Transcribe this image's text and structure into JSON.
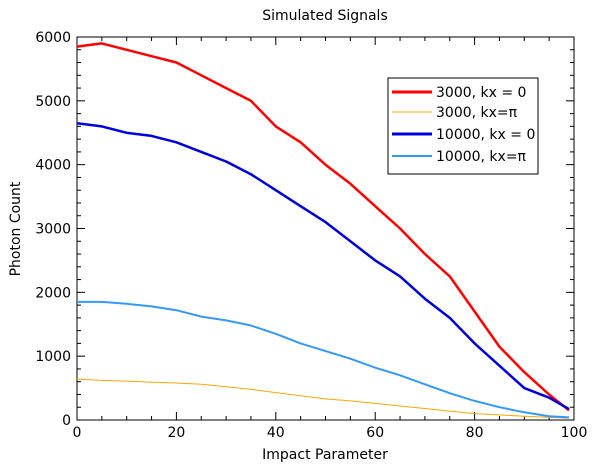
{
  "chart_data": {
    "type": "line",
    "title": "Simulated Signals",
    "xlabel": "Impact Parameter",
    "ylabel": "Photon Count",
    "xlim": [
      0,
      100
    ],
    "ylim": [
      0,
      6000
    ],
    "xticks": [
      0,
      20,
      40,
      60,
      80,
      100
    ],
    "yticks": [
      0,
      1000,
      2000,
      3000,
      4000,
      5000,
      6000
    ],
    "xticklabels": [
      "0",
      "20",
      "40",
      "60",
      "80",
      "100"
    ],
    "yticklabels": [
      "0",
      "1000",
      "2000",
      "3000",
      "4000",
      "5000",
      "6000"
    ],
    "grid": false,
    "legend_position": "top-right",
    "series": [
      {
        "name": "3000, kx = 0",
        "color": "#ff0000",
        "x": [
          0,
          5,
          10,
          15,
          20,
          25,
          30,
          35,
          40,
          45,
          50,
          55,
          60,
          65,
          70,
          75,
          80,
          85,
          90,
          95,
          99
        ],
        "y": [
          5850,
          5900,
          5800,
          5700,
          5600,
          5400,
          5200,
          5000,
          4600,
          4350,
          4000,
          3700,
          3350,
          3000,
          2600,
          2250,
          1700,
          1150,
          750,
          400,
          150
        ]
      },
      {
        "name": "3000, kx=π",
        "color": "#ffa500",
        "x": [
          0,
          5,
          10,
          15,
          20,
          25,
          30,
          35,
          40,
          45,
          50,
          55,
          60,
          65,
          70,
          75,
          80,
          85,
          90,
          95,
          99
        ],
        "y": [
          640,
          620,
          610,
          590,
          580,
          560,
          520,
          480,
          430,
          380,
          330,
          300,
          260,
          220,
          180,
          140,
          100,
          80,
          60,
          40,
          30
        ]
      },
      {
        "name": "10000, kx = 0",
        "color": "#0000dd",
        "x": [
          0,
          5,
          10,
          15,
          20,
          25,
          30,
          35,
          40,
          45,
          50,
          55,
          60,
          65,
          70,
          75,
          80,
          85,
          90,
          95,
          99
        ],
        "y": [
          4650,
          4600,
          4500,
          4450,
          4350,
          4200,
          4050,
          3850,
          3600,
          3350,
          3100,
          2800,
          2500,
          2250,
          1900,
          1600,
          1200,
          850,
          500,
          350,
          170
        ]
      },
      {
        "name": "10000, kx=π",
        "color": "#3399ff",
        "x": [
          0,
          5,
          10,
          15,
          20,
          25,
          30,
          35,
          40,
          45,
          50,
          55,
          60,
          65,
          70,
          75,
          80,
          85,
          90,
          95,
          99
        ],
        "y": [
          1850,
          1850,
          1820,
          1780,
          1720,
          1620,
          1560,
          1480,
          1350,
          1200,
          1080,
          960,
          820,
          700,
          560,
          420,
          300,
          200,
          120,
          60,
          40
        ]
      }
    ]
  }
}
